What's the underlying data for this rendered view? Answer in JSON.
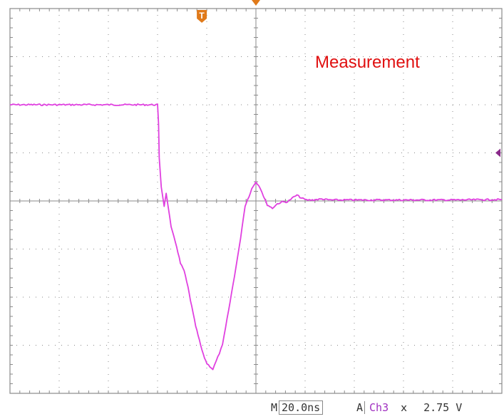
{
  "chart_data": {
    "type": "line",
    "title": "",
    "xlabel": "",
    "ylabel": "",
    "x_unit": "ns",
    "x_per_div": 20.0,
    "grid": true,
    "x_divisions": 10,
    "y_divisions": 8,
    "xlim": [
      -100,
      100
    ],
    "ylim": [
      -4,
      4
    ],
    "annotation": "Measurement",
    "series": [
      {
        "color": "#e040e0",
        "x": [
          -100,
          -40,
          -39.6,
          -39.3,
          -38.5,
          -37.3,
          -36.5,
          -35.7,
          -34.5,
          -32.2,
          -30.7,
          -29.2,
          -27.6,
          -26.1,
          -24.5,
          -23,
          -21.4,
          -19.9,
          -17.5,
          -15.5,
          -13.6,
          -10.5,
          -6.9,
          -4.4,
          -2.8,
          -1.7,
          0,
          1.7,
          3.1,
          4.6,
          6.7,
          8.7,
          10.6,
          12.8,
          14.8,
          16.7,
          18.5,
          20.5,
          23,
          26.8,
          30,
          40,
          60,
          80,
          100
        ],
        "y": [
          2.0,
          2.0,
          1.6,
          0.9,
          0.3,
          -0.1,
          0.15,
          -0.1,
          -0.55,
          -0.95,
          -1.3,
          -1.45,
          -1.8,
          -2.2,
          -2.6,
          -2.9,
          -3.2,
          -3.38,
          -3.5,
          -3.25,
          -3.0,
          -2.1,
          -1.0,
          -0.1,
          0.1,
          0.25,
          0.4,
          0.28,
          0.1,
          -0.08,
          -0.15,
          -0.06,
          -0.02,
          -0.02,
          0.06,
          0.12,
          0.06,
          0.02,
          0.02,
          0.04,
          0.02,
          0.02,
          0.02,
          0.02,
          0.03
        ]
      }
    ],
    "markers": [
      {
        "label": "T",
        "color": "#e07a1a"
      }
    ],
    "reference_arrow_color": "#8a2a8a"
  },
  "status": {
    "m_label": "M",
    "timebase": "20.0ns",
    "a_label": "A",
    "channel": "Ch3",
    "slope": "ⅹ",
    "level": "2.75 V"
  },
  "colors": {
    "grid": "#8a8a8a",
    "trace": "#e040e0",
    "annotation": "#e01010",
    "channel": "#a030c0"
  }
}
